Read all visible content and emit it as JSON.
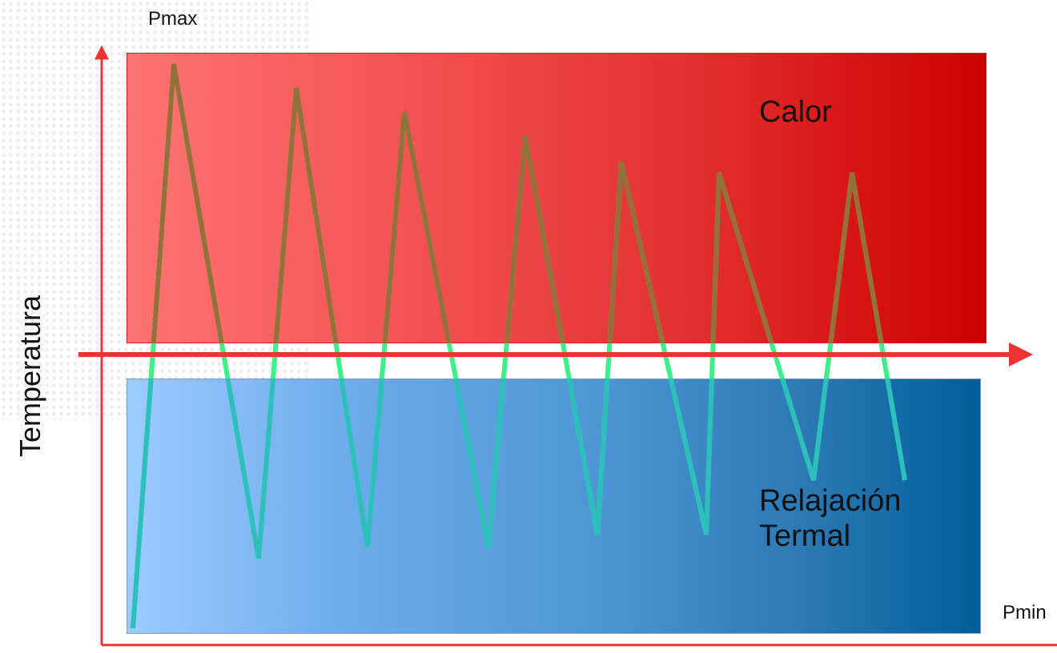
{
  "diagram": {
    "ylabel": "Temperatura",
    "pmax_label": "Pmax",
    "pmin_label": "Pmin",
    "heat_region_label": "Calor",
    "cool_region_label_line1": "Relajación",
    "cool_region_label_line2": "Termal",
    "colors": {
      "heat_start": "#ff7373",
      "heat_end": "#cc0000",
      "cool_start": "#9ccbff",
      "cool_end": "#005e99",
      "axis": "#ee3333",
      "wave_in_gap": "#3cf08a",
      "wave_over_heat": "#a35a2a",
      "wave_over_cool": "#2ab9c0"
    }
  }
}
